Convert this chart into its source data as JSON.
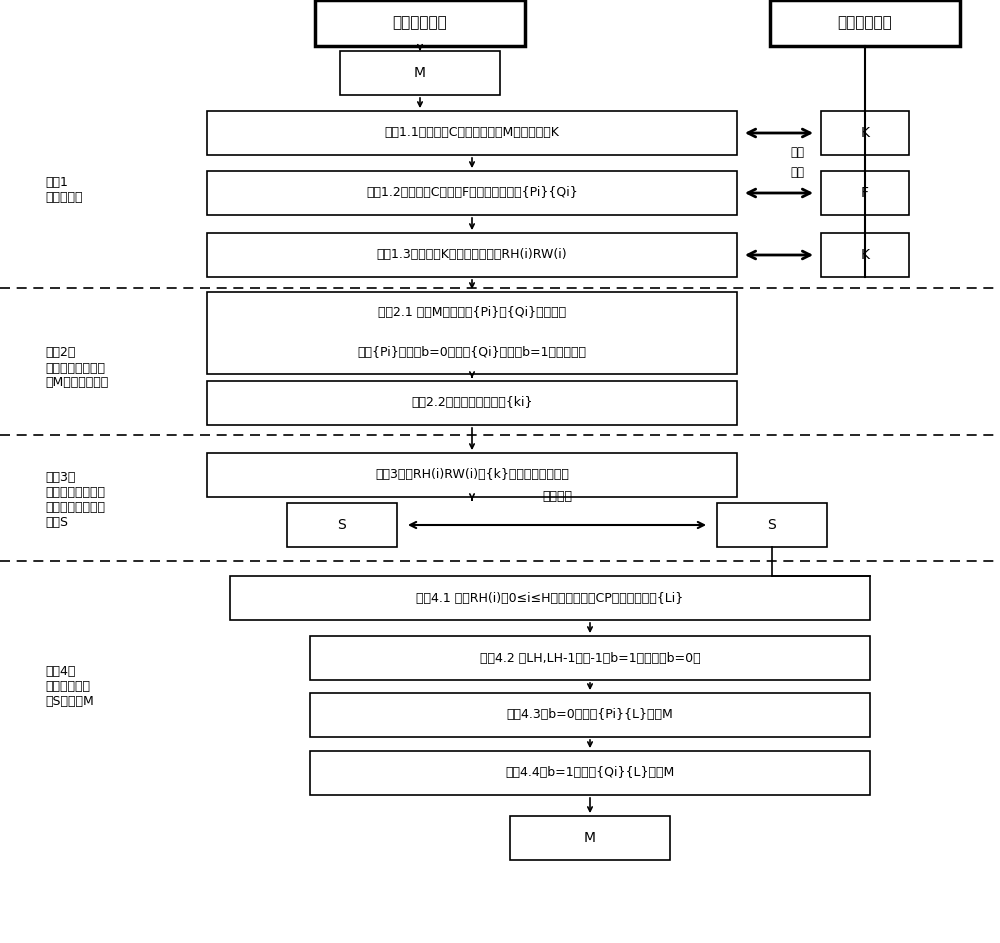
{
  "bg_color": "#ffffff",
  "title_embed": "信息嵌入实体",
  "title_decrypt": "信息解密实体",
  "M_top": "M",
  "step1_1": "步骤1.1输入图像C，待嵌入信息M，隐藏密钥K",
  "step1_2": "步骤1.2依据图像C及规则F得到两组互素数{Pi}{Qi}",
  "step1_3": "步骤1.3基于密钥K，生成置乱映射RH(i)RW(i)",
  "step2_1_line1": "步骤2.1 判断M是否可在{Pi}或{Qi}上表达；",
  "step2_1_line2": "可在{Pi}表达记b=0，可在{Qi}表达记b=1，否则终止",
  "step2_2": "步骤2.2选择性优化。重写{ki}",
  "step3_1": "步骤3基于RH(i)RW(i)对{k}进置乱编码与隐藏",
  "S_left": "S",
  "S_right": "S",
  "public_channel": "公开信道",
  "step4_1": "步骤4.1 在第RH(i)行0≤i≤H找到被标记的CP，记下其位置{Li}",
  "step4_2": "步骤4.2 若LH,LH-1不为-1则b=1，否则，b=0；",
  "step4_3": "步骤4.3当b=0时，以{Pi}{L}恢复M",
  "step4_4": "步骤4.4当b=1时，以{Qi}{L}恢复M",
  "M_bottom": "M",
  "K1": "K",
  "F": "F",
  "K2": "K",
  "safe1": "安全",
  "safe2": "信道",
  "label1": "步骤1\n系统初始化",
  "label2": "步骤2：\n基于中国剩余定理\n的M预编码与优化",
  "label3": "步骤3：\n嵌入置乱映射后的\n待隐藏信息预编码\n得到S",
  "label4": "步骤4：\n基于共享信息\n从S中恢复M"
}
